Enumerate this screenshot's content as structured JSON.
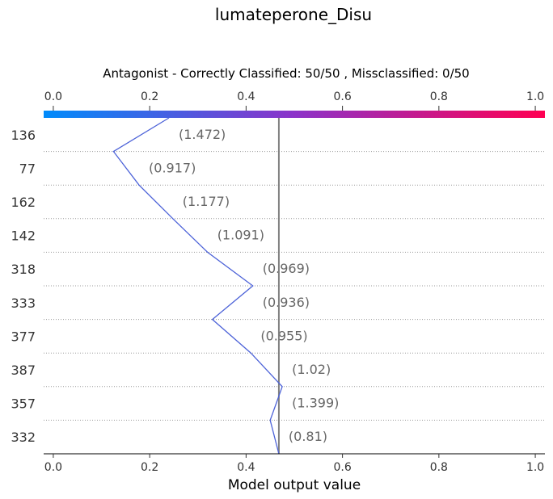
{
  "chart_data": {
    "type": "line",
    "title": "lumateperone_Disu",
    "subtitle": "Antagonist - Correctly Classified: 50/50 , Missclassified: 0/50",
    "xlabel": "Model output value",
    "xlim": [
      -0.02,
      1.02
    ],
    "x_ticks": [
      "0.0",
      "0.2",
      "0.4",
      "0.6",
      "0.8",
      "1.0"
    ],
    "x_tick_values": [
      0.0,
      0.2,
      0.4,
      0.6,
      0.8,
      1.0
    ],
    "base_value": 0.468,
    "start_value": 0.24,
    "colormap": [
      "#008bfb",
      "#ff0052"
    ],
    "rows": [
      {
        "label": "136",
        "value": "(1.472)",
        "x": 0.125
      },
      {
        "label": "77",
        "value": "(0.917)",
        "x": 0.178
      },
      {
        "label": "162",
        "value": "(1.177)",
        "x": 0.248
      },
      {
        "label": "142",
        "value": "(1.091)",
        "x": 0.32
      },
      {
        "label": "318",
        "value": "(0.969)",
        "x": 0.414
      },
      {
        "label": "333",
        "value": "(0.936)",
        "x": 0.33
      },
      {
        "label": "377",
        "value": "(0.955)",
        "x": 0.41
      },
      {
        "label": "387",
        "value": "(1.02)",
        "x": 0.475
      },
      {
        "label": "357",
        "value": "(1.399)",
        "x": 0.45
      },
      {
        "label": "332",
        "value": "(0.81)",
        "x": 0.468
      }
    ],
    "grid": "dotted-horizontal",
    "line_color": "#4c62d8",
    "base_line_color": "#808080"
  }
}
